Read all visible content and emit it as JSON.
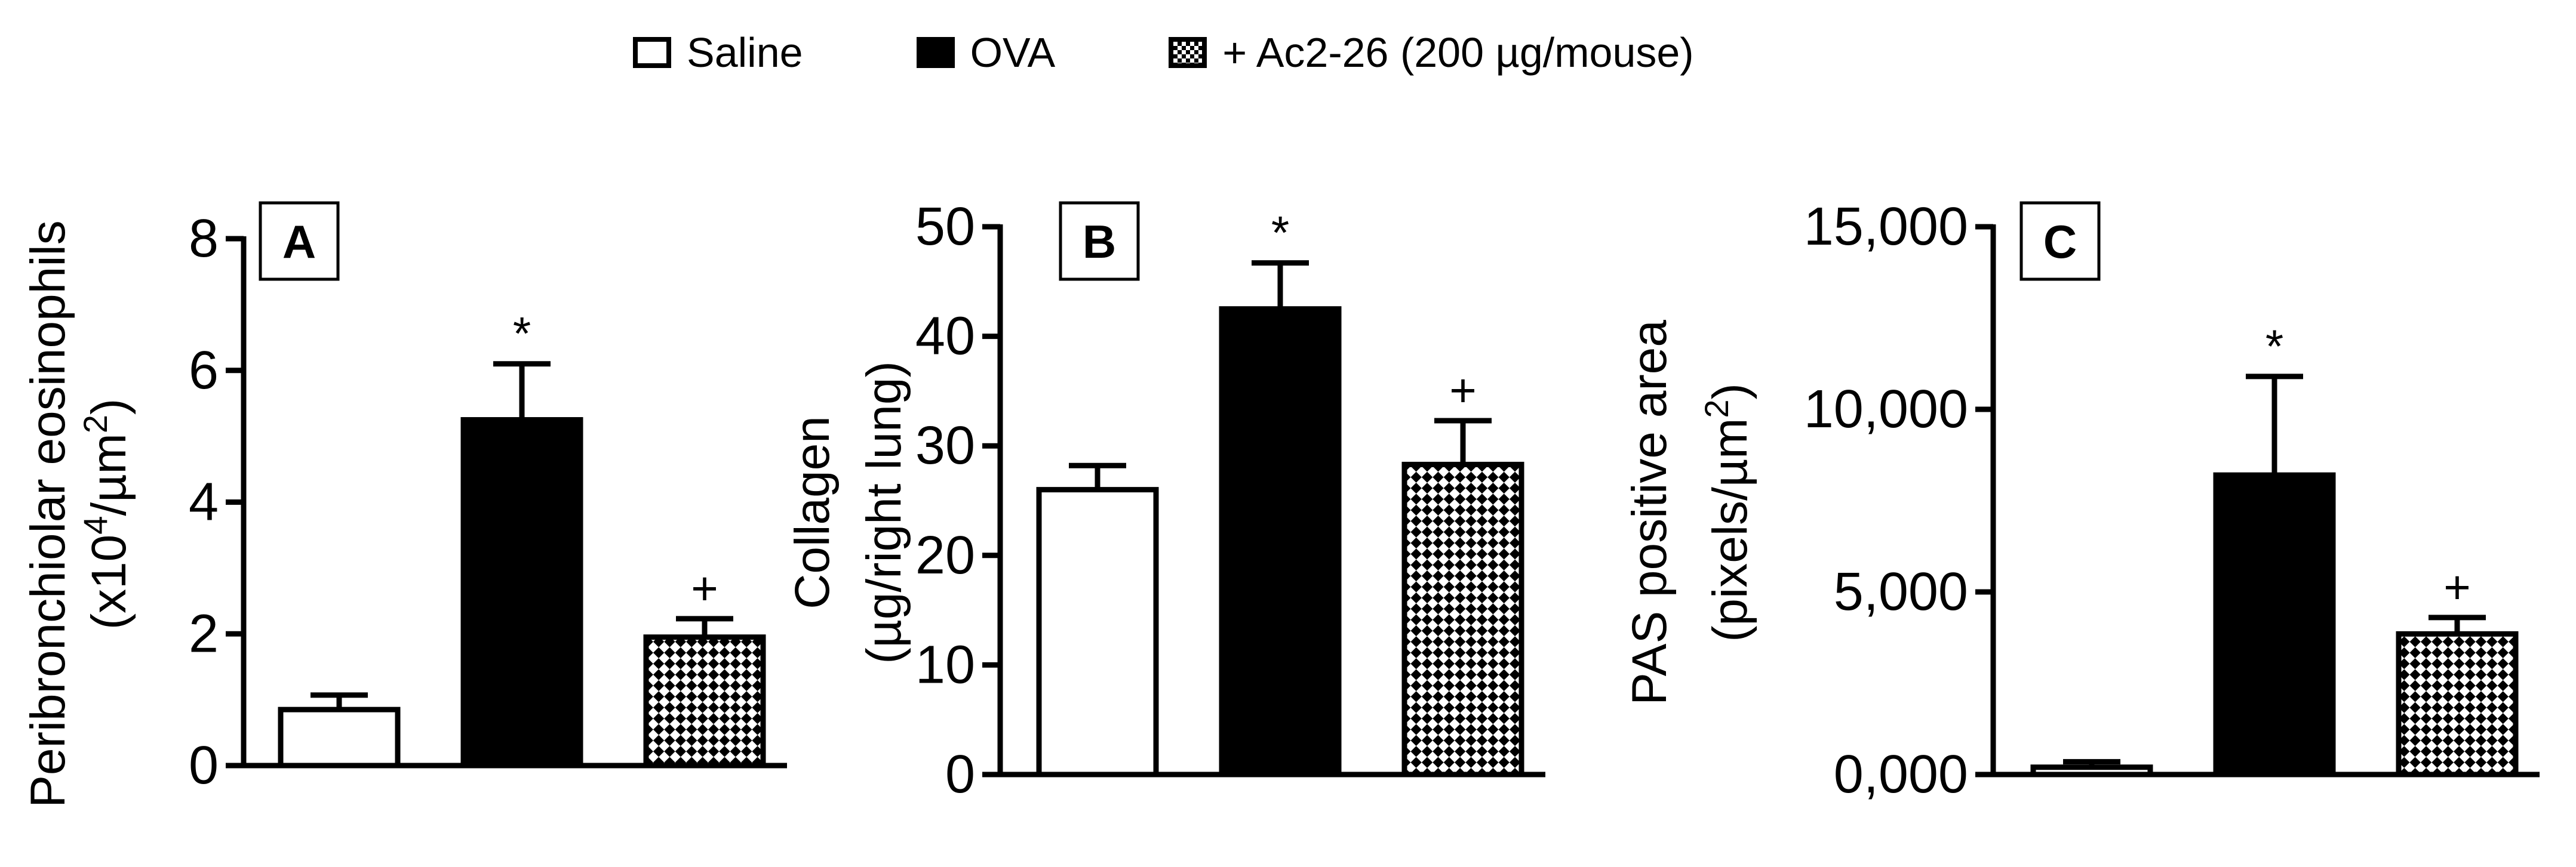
{
  "legend": {
    "items": [
      {
        "label": "Saline",
        "swatch": "empty"
      },
      {
        "label": "OVA",
        "swatch": "solid"
      },
      {
        "label": "+ Ac2-26 (200 µg/mouse)",
        "swatch": "checker"
      }
    ]
  },
  "chart_data": [
    {
      "type": "bar",
      "panel_label": "A",
      "ylabel_line1": "Peribronchiolar eosinophils",
      "ylabel_line2_prefix": "(x10",
      "ylabel_line2_sup": "4",
      "ylabel_line2_mid": "/µm",
      "ylabel_line2_sup2": "2",
      "ylabel_line2_suffix": ")",
      "categories": [
        "Saline",
        "OVA",
        "+ Ac2-26 (200 µg/mouse)"
      ],
      "values": [
        0.85,
        5.25,
        1.95
      ],
      "errors": [
        0.22,
        0.85,
        0.28
      ],
      "annotations": [
        "",
        "*",
        "+"
      ],
      "ylim": [
        0,
        8
      ],
      "yticks": [
        "0",
        "2",
        "4",
        "6",
        "8"
      ],
      "ytick_values": [
        0,
        2,
        4,
        6,
        8
      ]
    },
    {
      "type": "bar",
      "panel_label": "B",
      "ylabel_line1": "Collagen",
      "ylabel_line2": "(µg/right lung)",
      "categories": [
        "Saline",
        "OVA",
        "+ Ac2-26 (200 µg/mouse)"
      ],
      "values": [
        26,
        42.5,
        28.3
      ],
      "errors": [
        2.2,
        4.2,
        4
      ],
      "annotations": [
        "",
        "*",
        "+"
      ],
      "ylim": [
        0,
        50
      ],
      "yticks": [
        "0",
        "10",
        "20",
        "30",
        "40",
        "50"
      ],
      "ytick_values": [
        0,
        10,
        20,
        30,
        40,
        50
      ]
    },
    {
      "type": "bar",
      "panel_label": "C",
      "ylabel_line1": "PAS positive area",
      "ylabel_line2_prefix": "(pixels/µm",
      "ylabel_line2_sup": "2",
      "ylabel_line2_suffix": ")",
      "categories": [
        "Saline",
        "OVA",
        "+ Ac2-26 (200 µg/mouse)"
      ],
      "values": [
        200,
        8200,
        3850
      ],
      "errors": [
        150,
        2700,
        450
      ],
      "annotations": [
        "",
        "*",
        "+"
      ],
      "ylim": [
        0,
        15000
      ],
      "yticks": [
        "0,000",
        "5,000",
        "10,000",
        "15,000"
      ],
      "ytick_values": [
        0,
        5000,
        10000,
        15000
      ]
    }
  ]
}
